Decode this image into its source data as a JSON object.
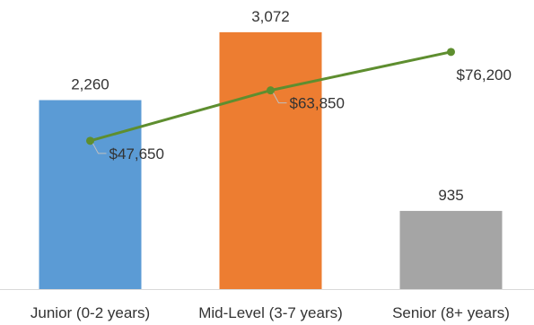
{
  "chart_data": {
    "type": "bar",
    "title": "",
    "xlabel": "",
    "ylabel": "",
    "categories": [
      "Junior (0-2 years)",
      "Mid-Level (3-7 years)",
      "Senior (8+ years)"
    ],
    "series": [
      {
        "type": "bar",
        "values": [
          2260,
          3072,
          935
        ],
        "labels": [
          "2,260",
          "3,072",
          "935"
        ],
        "colors": [
          "#5B9BD5",
          "#ED7D31",
          "#A5A5A5"
        ]
      },
      {
        "type": "line",
        "values": [
          47650,
          63850,
          76200
        ],
        "labels": [
          "$47,650",
          "$63,850",
          "$76,200"
        ],
        "color": "#5E8E2F"
      }
    ],
    "ylim": [
      0,
      3350
    ],
    "y2lim": [
      0,
      90000
    ],
    "legend": "none",
    "grid": false
  }
}
